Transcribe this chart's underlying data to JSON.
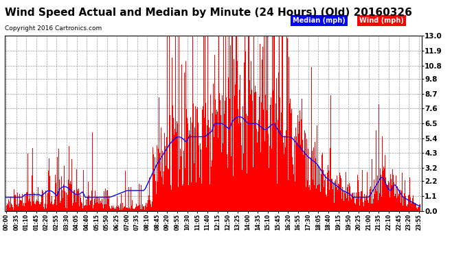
{
  "title": "Wind Speed Actual and Median by Minute (24 Hours) (Old) 20160326",
  "copyright": "Copyright 2016 Cartronics.com",
  "yticks": [
    0.0,
    1.1,
    2.2,
    3.2,
    4.3,
    5.4,
    6.5,
    7.6,
    8.7,
    9.8,
    10.8,
    11.9,
    13.0
  ],
  "ylim": [
    0.0,
    13.0
  ],
  "background_color": "#ffffff",
  "plot_bg_color": "#ffffff",
  "grid_color": "#999999",
  "bar_color": "#ff0000",
  "line_color": "#0000ff",
  "title_fontsize": 11,
  "legend_median_color": "#0000ff",
  "legend_wind_color": "#ff0000"
}
